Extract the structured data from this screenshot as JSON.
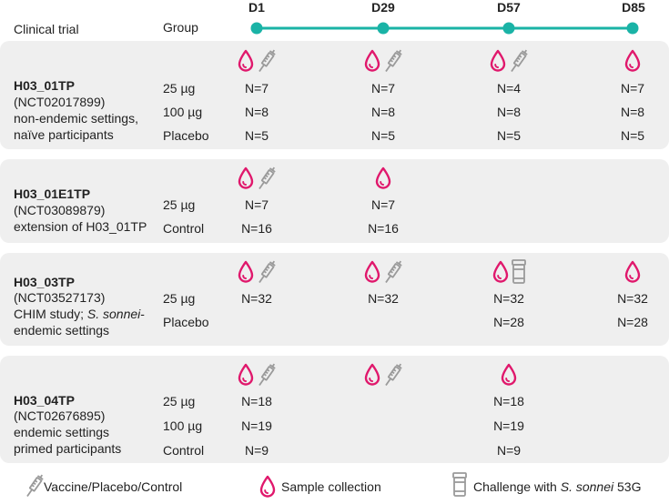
{
  "header": {
    "trial_label": "Clinical trial",
    "group_label": "Group",
    "days": [
      "D1",
      "D29",
      "D57",
      "D85"
    ]
  },
  "trials": [
    {
      "title": "H03_01TP",
      "nct": "(NCT02017899)",
      "desc1": "non-endemic settings,",
      "desc2": "naïve participants",
      "groups": [
        "25 µg",
        "100 µg",
        "Placebo"
      ],
      "icons": {
        "D1": [
          "drop",
          "syringe"
        ],
        "D29": [
          "drop",
          "syringe"
        ],
        "D57": [
          "drop",
          "syringe"
        ],
        "D85": [
          "drop"
        ]
      },
      "rows": [
        [
          "N=7",
          "N=7",
          "N=4",
          "N=7"
        ],
        [
          "N=8",
          "N=8",
          "N=8",
          "N=8"
        ],
        [
          "N=5",
          "N=5",
          "N=5",
          "N=5"
        ]
      ]
    },
    {
      "title": "H03_01E1TP",
      "nct": "(NCT03089879)",
      "desc1": "extension of H03_01TP",
      "desc2": "",
      "groups": [
        "25 µg",
        "Control"
      ],
      "icons": {
        "D1": [
          "drop",
          "syringe"
        ],
        "D29": [
          "drop"
        ]
      },
      "rows": [
        [
          "N=7",
          "N=7",
          "",
          ""
        ],
        [
          "N=16",
          "N=16",
          "",
          ""
        ]
      ]
    },
    {
      "title": "H03_03TP",
      "nct": "(NCT03527173)",
      "desc1_pre": "CHIM study; ",
      "desc1_italic": "S. sonnei",
      "desc1_post": "-",
      "desc2": "endemic settings",
      "groups": [
        "25 µg",
        "Placebo"
      ],
      "icons": {
        "D1": [
          "drop",
          "syringe"
        ],
        "D29": [
          "drop",
          "syringe"
        ],
        "D57": [
          "drop",
          "challenge"
        ],
        "D85": [
          "drop"
        ]
      },
      "rows": [
        [
          "N=32",
          "N=32",
          "N=32",
          "N=32"
        ],
        [
          "",
          "",
          "N=28",
          "N=28"
        ]
      ]
    },
    {
      "title": "H03_04TP",
      "nct": "(NCT02676895)",
      "desc1": "endemic settings",
      "desc2": "primed participants",
      "groups": [
        "25 µg",
        "100 µg",
        "Control"
      ],
      "icons": {
        "D1": [
          "drop",
          "syringe"
        ],
        "D29": [
          "drop",
          "syringe"
        ],
        "D57": [
          "drop"
        ]
      },
      "rows": [
        [
          "N=18",
          "",
          "N=18",
          ""
        ],
        [
          "N=19",
          "",
          "N=19",
          ""
        ],
        [
          "N=9",
          "",
          "N=9",
          ""
        ]
      ]
    }
  ],
  "legend": {
    "vaccine": "Vaccine/Placebo/Control",
    "sample": "Sample collection",
    "challenge_pre": "Challenge with ",
    "challenge_italic": "S. sonnei",
    "challenge_post": " 53G"
  },
  "colors": {
    "timeline": "#1ab3a6",
    "drop": "#e0186c",
    "syringe": "#9a9a9a",
    "panel": "#efefef"
  }
}
